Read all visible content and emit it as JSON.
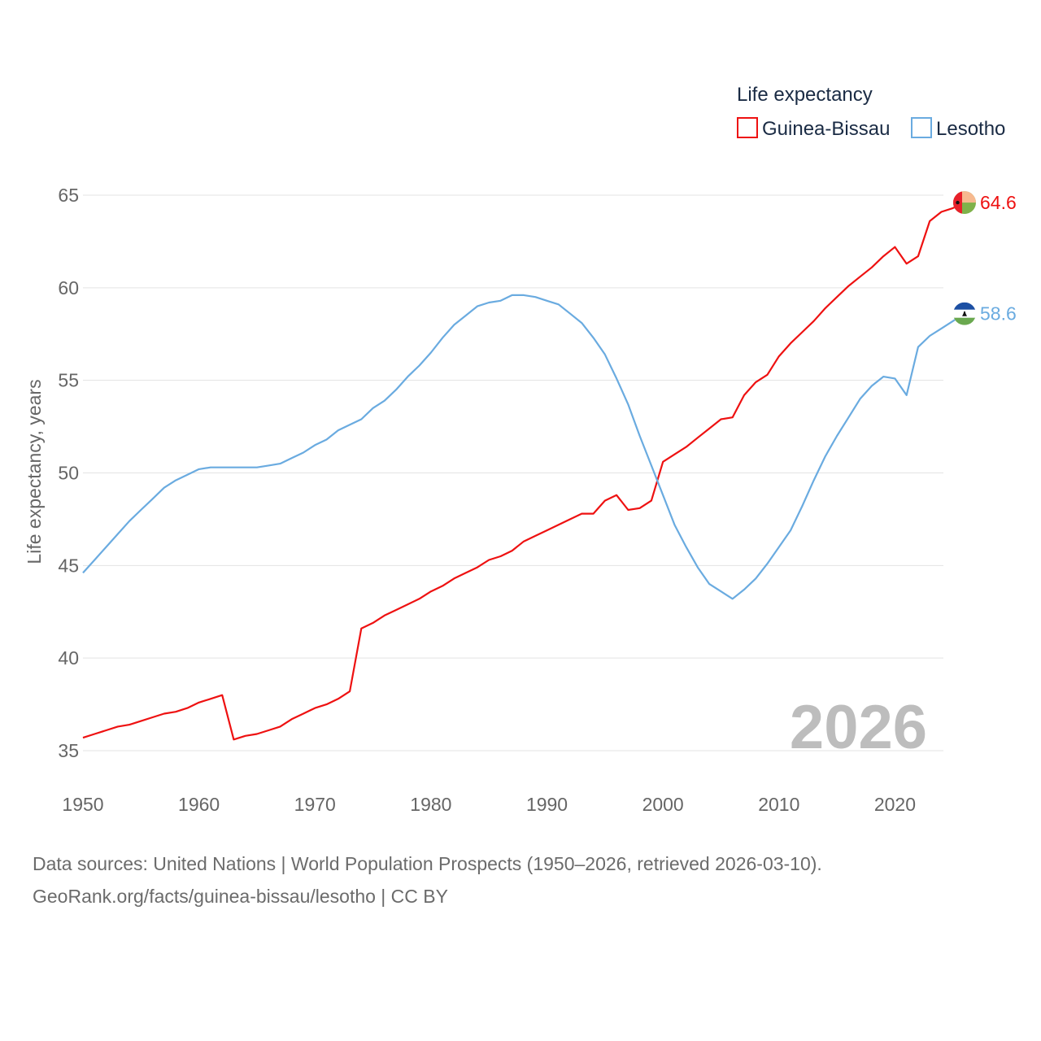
{
  "chart_data": {
    "type": "line",
    "title": "",
    "legend_title": "Life expectancy",
    "legend_position": "top-right",
    "ylabel": "Life expectancy, years",
    "xlabel": "",
    "xlim": [
      1950,
      2026
    ],
    "ylim": [
      34,
      66
    ],
    "y_ticks": [
      35,
      40,
      45,
      50,
      55,
      60,
      65
    ],
    "x_ticks": [
      1950,
      1960,
      1970,
      1980,
      1990,
      2000,
      2010,
      2020
    ],
    "grid": true,
    "year_label": "2026",
    "x": [
      1950,
      1951,
      1952,
      1953,
      1954,
      1955,
      1956,
      1957,
      1958,
      1959,
      1960,
      1961,
      1962,
      1963,
      1964,
      1965,
      1966,
      1967,
      1968,
      1969,
      1970,
      1971,
      1972,
      1973,
      1974,
      1975,
      1976,
      1977,
      1978,
      1979,
      1980,
      1981,
      1982,
      1983,
      1984,
      1985,
      1986,
      1987,
      1988,
      1989,
      1990,
      1991,
      1992,
      1993,
      1994,
      1995,
      1996,
      1997,
      1998,
      1999,
      2000,
      2001,
      2002,
      2003,
      2004,
      2005,
      2006,
      2007,
      2008,
      2009,
      2010,
      2011,
      2012,
      2013,
      2014,
      2015,
      2016,
      2017,
      2018,
      2019,
      2020,
      2021,
      2022,
      2023,
      2024,
      2025,
      2026
    ],
    "series": [
      {
        "name": "Guinea-Bissau",
        "color": "#ee1111",
        "end_label": "64.6",
        "flag": "guinea-bissau-flag-icon",
        "values": [
          35.7,
          35.9,
          36.1,
          36.3,
          36.4,
          36.6,
          36.8,
          37.0,
          37.1,
          37.3,
          37.6,
          37.8,
          38.0,
          35.6,
          35.8,
          35.9,
          36.1,
          36.3,
          36.7,
          37.0,
          37.3,
          37.5,
          37.8,
          38.2,
          41.6,
          41.9,
          42.3,
          42.6,
          42.9,
          43.2,
          43.6,
          43.9,
          44.3,
          44.6,
          44.9,
          45.3,
          45.5,
          45.8,
          46.3,
          46.6,
          46.9,
          47.2,
          47.5,
          47.8,
          47.8,
          48.5,
          48.8,
          48.0,
          48.1,
          48.5,
          50.6,
          51.0,
          51.4,
          51.9,
          52.4,
          52.9,
          53.0,
          54.2,
          54.9,
          55.3,
          56.3,
          57.0,
          57.6,
          58.2,
          58.9,
          59.5,
          60.1,
          60.6,
          61.1,
          61.7,
          62.2,
          61.3,
          61.7,
          63.6,
          64.1,
          64.3,
          64.6
        ]
      },
      {
        "name": "Lesotho",
        "color": "#6aabe0",
        "end_label": "58.6",
        "flag": "lesotho-flag-icon",
        "values": [
          44.6,
          45.3,
          46.0,
          46.7,
          47.4,
          48.0,
          48.6,
          49.2,
          49.6,
          49.9,
          50.2,
          50.3,
          50.3,
          50.3,
          50.3,
          50.3,
          50.4,
          50.5,
          50.8,
          51.1,
          51.5,
          51.8,
          52.3,
          52.6,
          52.9,
          53.5,
          53.9,
          54.5,
          55.2,
          55.8,
          56.5,
          57.3,
          58.0,
          58.5,
          59.0,
          59.2,
          59.3,
          59.6,
          59.6,
          59.5,
          59.3,
          59.1,
          58.6,
          58.1,
          57.3,
          56.4,
          55.1,
          53.7,
          52.0,
          50.4,
          48.8,
          47.2,
          46.0,
          44.9,
          44.0,
          43.6,
          43.2,
          43.7,
          44.3,
          45.1,
          46.0,
          46.9,
          48.2,
          49.6,
          50.9,
          52.0,
          53.0,
          54.0,
          54.7,
          55.2,
          55.1,
          54.2,
          56.8,
          57.4,
          57.8,
          58.2,
          58.6
        ]
      }
    ]
  },
  "source": {
    "line1": "Data sources: United Nations | World Population Prospects (1950–2026, retrieved 2026-03-10).",
    "line2": "GeoRank.org/facts/guinea-bissau/lesotho | CC BY"
  }
}
